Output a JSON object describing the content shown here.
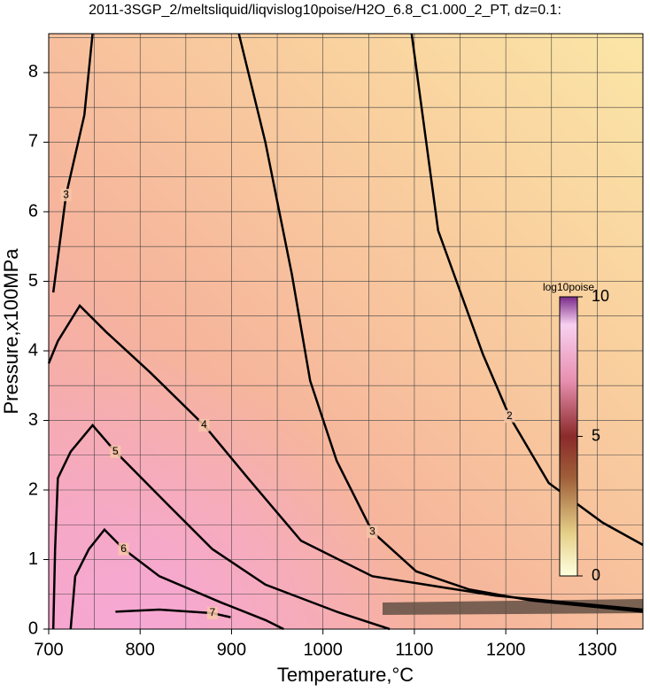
{
  "chart_data": {
    "type": "contour",
    "title": "2011-3SGP_2/meltsliquid/liqvislog10poise/H2O_6.8_C1.000_2_PT, dz=0.1:",
    "x_label": "Temperature,°C",
    "y_label": "Pressure,x100MPa",
    "xlim": [
      700,
      1350
    ],
    "ylim": [
      0,
      8.56
    ],
    "xticks": [
      700,
      800,
      900,
      1000,
      1100,
      1200,
      1300
    ],
    "yticks": [
      0,
      1,
      2,
      3,
      4,
      5,
      6,
      7,
      8
    ],
    "xgrid": [
      750,
      800,
      850,
      900,
      950,
      1000,
      1050,
      1100,
      1150,
      1200,
      1250,
      1300
    ],
    "ygrid": [
      0.5,
      1,
      1.5,
      2,
      2.5,
      3,
      3.5,
      4,
      4.5,
      5,
      5.5,
      6,
      6.5,
      7,
      7.5,
      8,
      8.5
    ],
    "grid": true,
    "color": "#000000",
    "series": [
      {
        "name": "2",
        "x": [
          1097,
          1126,
          1175,
          1204,
          1247,
          1306,
          1350
        ],
        "values": [
          8.56,
          5.73,
          3.95,
          3.06,
          2.1,
          1.53,
          1.21
        ]
      },
      {
        "name": "3",
        "x": [
          908,
          937,
          966,
          986,
          1015,
          1054,
          1102,
          1160,
          1228,
          1350
        ],
        "values": [
          8.56,
          7.0,
          5.1,
          3.57,
          2.42,
          1.4,
          0.83,
          0.57,
          0.41,
          0.25
        ]
      },
      {
        "name": "3",
        "x": [
          748,
          739,
          719,
          705
        ],
        "values": [
          8.56,
          7.39,
          6.24,
          4.84
        ]
      },
      {
        "name": "4",
        "x": [
          700,
          710,
          734,
          763,
          811,
          870,
          918,
          976,
          1054,
          1189,
          1350
        ],
        "values": [
          3.82,
          4.14,
          4.65,
          4.27,
          3.69,
          2.93,
          2.17,
          1.27,
          0.76,
          0.48,
          0.28
        ]
      },
      {
        "name": "5",
        "x": [
          705,
          707,
          710,
          724,
          748,
          773,
          831,
          879,
          937,
          1015,
          1073
        ],
        "values": [
          0,
          1.15,
          2.17,
          2.55,
          2.93,
          2.55,
          1.78,
          1.15,
          0.64,
          0.25,
          0
        ]
      },
      {
        "name": "6",
        "x": [
          724,
          729,
          744,
          761,
          782,
          821,
          889,
          937,
          957
        ],
        "values": [
          0,
          0.76,
          1.15,
          1.43,
          1.15,
          0.76,
          0.38,
          0.13,
          0
        ]
      },
      {
        "name": "7",
        "x": [
          773,
          821,
          879,
          899
        ],
        "values": [
          0.25,
          0.28,
          0.23,
          0.17
        ]
      }
    ],
    "colorbar": {
      "label": "log10poise",
      "lim": [
        0,
        10
      ],
      "ticks": [
        0,
        5,
        10
      ]
    }
  }
}
